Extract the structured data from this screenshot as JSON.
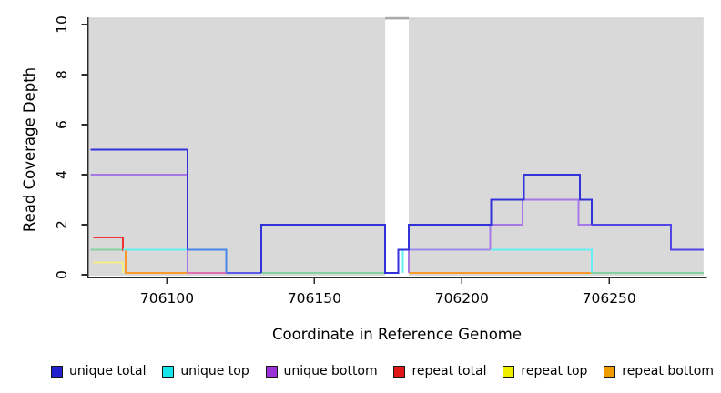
{
  "x_axis": {
    "label": "Coordinate in Reference Genome",
    "ticks": [
      706100,
      706150,
      706200,
      706250
    ],
    "range": [
      706071.5,
      706283
    ]
  },
  "y_axis": {
    "label": "Read Coverage Depth",
    "ticks": [
      0,
      2,
      4,
      6,
      8,
      10
    ],
    "range": [
      0,
      10
    ]
  },
  "legend": [
    {
      "label": "unique total",
      "color": "#2020cf"
    },
    {
      "label": "unique top",
      "color": "#16e6ea"
    },
    {
      "label": "unique bottom",
      "color": "#9a30d6"
    },
    {
      "label": "repeat total",
      "color": "#e01717"
    },
    {
      "label": "repeat top",
      "color": "#f0ee00"
    },
    {
      "label": "repeat bottom",
      "color": "#f09b00"
    }
  ],
  "chart_data": {
    "type": "step",
    "title": "",
    "panel_color": "#d9d9d9",
    "panel_edge_color": "#c9c9c9",
    "gap_cap_color": "#a9a9a9",
    "background_regions": [
      [
        706073.5,
        706174
      ],
      [
        706182,
        706282
      ]
    ],
    "gap_region": [
      706174,
      706182
    ],
    "series": [
      {
        "name": "unique total",
        "color_key": "blue",
        "steps": [
          [
            706074,
            5
          ],
          [
            706107,
            1
          ],
          [
            706120,
            0
          ],
          [
            706132,
            2
          ],
          [
            706174,
            0
          ],
          [
            706178,
            1
          ],
          [
            706182,
            2
          ],
          [
            706210,
            3
          ],
          [
            706221,
            4
          ],
          [
            706240,
            3
          ],
          [
            706244,
            2
          ],
          [
            706271,
            1
          ],
          [
            706282,
            1
          ]
        ]
      },
      {
        "name": "unique top",
        "color_key": "cyan",
        "steps": [
          [
            706074,
            1
          ],
          [
            706120,
            0
          ],
          [
            706180,
            1
          ],
          [
            706244,
            0
          ],
          [
            706282,
            0
          ]
        ]
      },
      {
        "name": "unique bottom",
        "color_key": "purple",
        "steps": [
          [
            706074,
            4
          ],
          [
            706107,
            0
          ],
          [
            706182,
            1
          ],
          [
            706210,
            2
          ],
          [
            706221,
            3
          ],
          [
            706240,
            2
          ],
          [
            706271,
            1
          ],
          [
            706282,
            1
          ]
        ]
      },
      {
        "name": "repeat total",
        "color_key": "red",
        "steps": [
          [
            706075,
            1.5
          ],
          [
            706085,
            0
          ],
          [
            706282,
            0
          ]
        ]
      },
      {
        "name": "repeat top",
        "color_key": "yellow",
        "steps": [
          [
            706075,
            0.5
          ],
          [
            706085,
            0
          ],
          [
            706282,
            0
          ]
        ]
      },
      {
        "name": "repeat bottom",
        "color_key": "orange",
        "steps": [
          [
            706075,
            1
          ],
          [
            706085,
            0
          ],
          [
            706282,
            0
          ]
        ]
      }
    ],
    "palette": {
      "blue": "#3232d9",
      "lightblue": "#4a85ec",
      "cyan": "#63eef2",
      "green": "#86cf9e",
      "purple": "#a678e6",
      "lavender": "#9b8cea",
      "violet": "#5344e6",
      "red": "#ee3333",
      "yellow": "#f3ef82",
      "orange": "#f8992b",
      "pink": "#df6fae",
      "bottomblue": "#5c5ce8"
    },
    "polylines": [
      {
        "color": "green",
        "points": [
          [
            706074,
            1
          ],
          [
            706085,
            1
          ]
        ]
      },
      {
        "color": "green",
        "points": [
          [
            706132,
            0.07
          ],
          [
            706174,
            0.07
          ]
        ]
      },
      {
        "color": "orange",
        "points": [
          [
            706086,
            1
          ],
          [
            706086,
            0.07
          ],
          [
            706107,
            0.07
          ]
        ]
      },
      {
        "color": "pink",
        "points": [
          [
            706107,
            0.07
          ],
          [
            706120,
            0.07
          ]
        ]
      },
      {
        "color": "bottomblue",
        "points": [
          [
            706120,
            0.07
          ],
          [
            706132,
            0.07
          ]
        ]
      },
      {
        "color": "orange",
        "points": [
          [
            706182,
            0.07
          ],
          [
            706244,
            0.07
          ]
        ]
      },
      {
        "color": "green",
        "points": [
          [
            706244,
            0.07
          ],
          [
            706282,
            0.07
          ]
        ]
      },
      {
        "color": "red",
        "points": [
          [
            706075,
            1.5
          ],
          [
            706085,
            1.5
          ],
          [
            706085,
            0.95
          ]
        ]
      },
      {
        "color": "yellow",
        "points": [
          [
            706075,
            0.5
          ],
          [
            706085,
            0.5
          ],
          [
            706085,
            0.07
          ]
        ]
      },
      {
        "color": "cyan",
        "points": [
          [
            706085,
            1
          ],
          [
            706107,
            1
          ]
        ]
      },
      {
        "color": "purple",
        "points": [
          [
            706074,
            4
          ],
          [
            706107,
            4
          ],
          [
            706107,
            0.07
          ]
        ]
      },
      {
        "color": "blue",
        "points": [
          [
            706074,
            5
          ],
          [
            706107,
            5
          ],
          [
            706107,
            1
          ]
        ]
      },
      {
        "color": "lightblue",
        "points": [
          [
            706107,
            1
          ],
          [
            706120,
            1
          ],
          [
            706120,
            0.07
          ]
        ]
      },
      {
        "color": "cyan",
        "points": [
          [
            706180,
            0.07
          ],
          [
            706180,
            1
          ],
          [
            706182,
            1
          ]
        ]
      },
      {
        "color": "purple",
        "points": [
          [
            706182,
            0.07
          ],
          [
            706182,
            1
          ]
        ]
      },
      {
        "color": "lavender",
        "points": [
          [
            706182,
            1
          ],
          [
            706209.6,
            1
          ]
        ]
      },
      {
        "color": "purple",
        "points": [
          [
            706209.6,
            1
          ],
          [
            706209.6,
            2
          ],
          [
            706220.6,
            2
          ],
          [
            706220.6,
            3
          ],
          [
            706239.6,
            3
          ],
          [
            706239.6,
            2
          ],
          [
            706244,
            2
          ]
        ]
      },
      {
        "color": "cyan",
        "points": [
          [
            706210,
            1
          ],
          [
            706244,
            1
          ],
          [
            706244,
            0.07
          ]
        ]
      },
      {
        "color": "blue",
        "points": [
          [
            706132,
            0.07
          ],
          [
            706132,
            2
          ],
          [
            706174,
            2
          ],
          [
            706174,
            0.07
          ],
          [
            706178.5,
            0.07
          ],
          [
            706178.5,
            1
          ],
          [
            706182,
            1
          ],
          [
            706182,
            2
          ],
          [
            706210,
            2
          ],
          [
            706210,
            3
          ],
          [
            706221,
            3
          ],
          [
            706221,
            4
          ],
          [
            706240,
            4
          ],
          [
            706240,
            3
          ],
          [
            706244,
            3
          ],
          [
            706244,
            2
          ]
        ]
      },
      {
        "color": "violet",
        "points": [
          [
            706244,
            2
          ],
          [
            706271,
            2
          ],
          [
            706271,
            1
          ],
          [
            706282,
            1
          ]
        ]
      }
    ]
  }
}
